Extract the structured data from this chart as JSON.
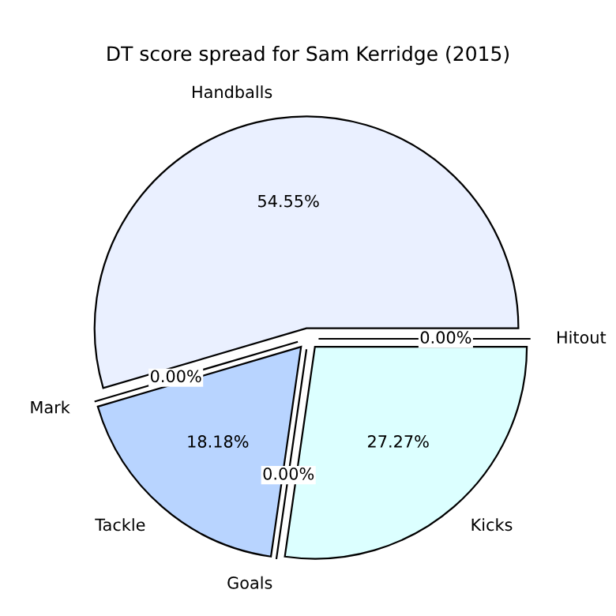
{
  "chart_data": {
    "type": "pie",
    "title": "DT score spread for Sam Kerridge (2015)",
    "categories": [
      "Handballs",
      "Mark",
      "Tackle",
      "Goals",
      "Kicks",
      "Hitout"
    ],
    "values": [
      54.55,
      0.0,
      18.18,
      0.0,
      27.27,
      0.0
    ],
    "value_labels": [
      "54.55%",
      "0.00%",
      "18.18%",
      "0.00%",
      "27.27%",
      "0.00%"
    ],
    "colors": [
      "#eaf0ff",
      "#ffe0e0",
      "#b8d4ff",
      "#fff0c0",
      "#dcffff",
      "#e0ffe0"
    ],
    "legend": false
  }
}
